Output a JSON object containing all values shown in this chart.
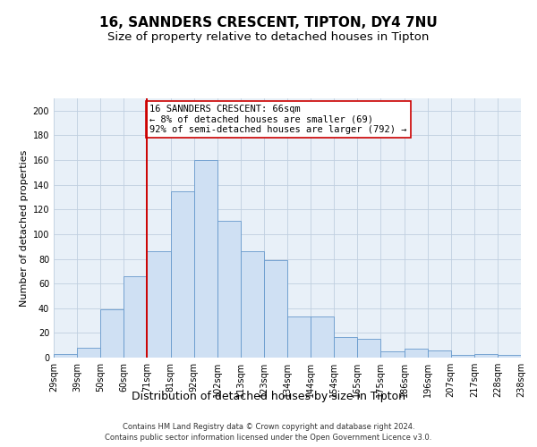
{
  "title": "16, SANNDERS CRESCENT, TIPTON, DY4 7NU",
  "subtitle": "Size of property relative to detached houses in Tipton",
  "xlabel": "Distribution of detached houses by size in Tipton",
  "ylabel": "Number of detached properties",
  "bar_values": [
    3,
    8,
    39,
    66,
    86,
    135,
    160,
    111,
    86,
    79,
    33,
    33,
    17,
    15,
    5,
    7,
    6,
    2,
    3,
    2
  ],
  "bar_labels": [
    "29sqm",
    "39sqm",
    "50sqm",
    "60sqm",
    "71sqm",
    "81sqm",
    "92sqm",
    "102sqm",
    "113sqm",
    "123sqm",
    "134sqm",
    "144sqm",
    "154sqm",
    "165sqm",
    "175sqm",
    "186sqm",
    "196sqm",
    "207sqm",
    "217sqm",
    "228sqm",
    "238sqm"
  ],
  "bar_color": "#cfe0f3",
  "bar_edge_color": "#6699cc",
  "vline_color": "#cc0000",
  "annotation_text": "16 SANNDERS CRESCENT: 66sqm\n← 8% of detached houses are smaller (69)\n92% of semi-detached houses are larger (792) →",
  "annotation_box_color": "#ffffff",
  "annotation_box_edge": "#cc0000",
  "ylim": [
    0,
    210
  ],
  "yticks": [
    0,
    20,
    40,
    60,
    80,
    100,
    120,
    140,
    160,
    180,
    200
  ],
  "footer_line1": "Contains HM Land Registry data © Crown copyright and database right 2024.",
  "footer_line2": "Contains public sector information licensed under the Open Government Licence v3.0.",
  "background_color": "#ffffff",
  "axes_bg_color": "#e8f0f8",
  "grid_color": "#c0cfe0",
  "title_fontsize": 11,
  "subtitle_fontsize": 9.5,
  "xlabel_fontsize": 9,
  "ylabel_fontsize": 8,
  "tick_fontsize": 7,
  "footer_fontsize": 6,
  "annot_fontsize": 7.5
}
